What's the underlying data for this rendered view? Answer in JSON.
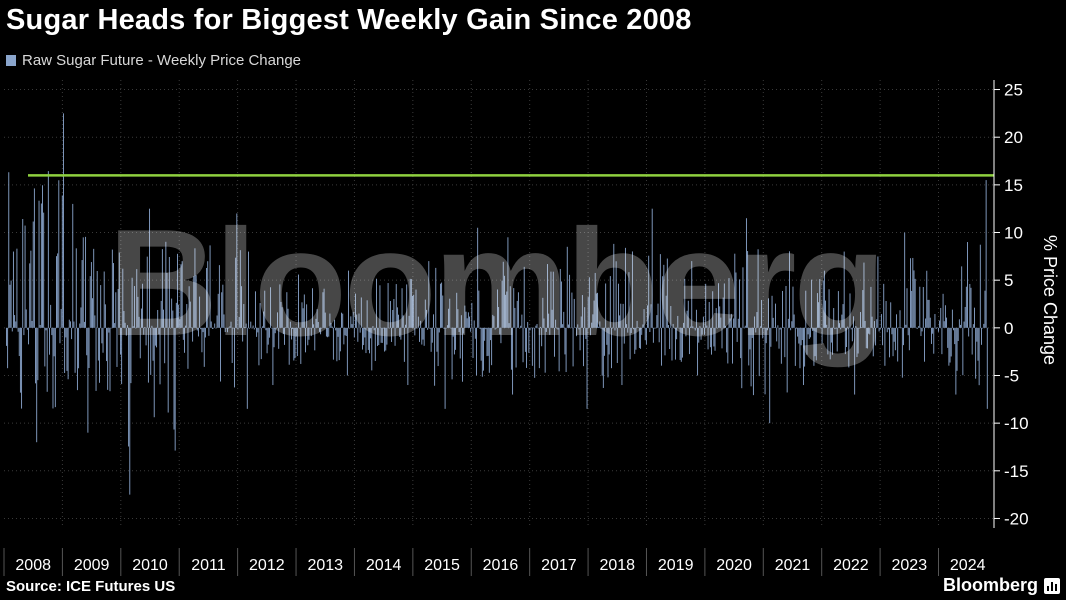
{
  "title": "Sugar Heads for Biggest Weekly Gain Since 2008",
  "legend": {
    "label": "Raw Sugar Future - Weekly Price Change",
    "color": "#8aa5cc"
  },
  "source": "Source: ICE Futures US",
  "brand": "Bloomberg",
  "watermark": "Bloomberg",
  "colors": {
    "background": "#000000",
    "bars": "#8aa5cc",
    "reference_line": "#8fd13f",
    "grid": "#3a3a3a"
  },
  "chart_data": {
    "type": "bar",
    "title": "Sugar Heads for Biggest Weekly Gain Since 2008",
    "ylabel": "% Price Change",
    "xlabel": "",
    "ylim": [
      -21,
      26
    ],
    "y_ticks": [
      25,
      20,
      15,
      10,
      5,
      0,
      -5,
      -10,
      -15,
      -20
    ],
    "x_tick_labels": [
      "2008",
      "2009",
      "2010",
      "2011",
      "2012",
      "2013",
      "2014",
      "2015",
      "2016",
      "2017",
      "2018",
      "2019",
      "2020",
      "2021",
      "2022",
      "2023",
      "2024"
    ],
    "grid": true,
    "y_axis_position": "right",
    "legend_position": "top-left",
    "reference_line": {
      "value": 16,
      "color": "#8fd13f"
    },
    "series": [
      {
        "name": "Raw Sugar Future - Weekly Price Change",
        "color": "#8aa5cc",
        "frequency": "weekly",
        "start": "2008-01",
        "annual_range_summary": [
          {
            "year": "2008",
            "max": 22.5,
            "min": -12
          },
          {
            "year": "2009",
            "max": 13,
            "min": -11
          },
          {
            "year": "2010",
            "max": 12.5,
            "min": -17.5
          },
          {
            "year": "2011",
            "max": 12,
            "min": -8.5
          },
          {
            "year": "2012",
            "max": 8,
            "min": -6
          },
          {
            "year": "2013",
            "max": 6,
            "min": -5
          },
          {
            "year": "2014",
            "max": 7,
            "min": -6
          },
          {
            "year": "2015",
            "max": 10.5,
            "min": -8.5
          },
          {
            "year": "2016",
            "max": 9.5,
            "min": -7
          },
          {
            "year": "2017",
            "max": 8.5,
            "min": -8.5
          },
          {
            "year": "2018",
            "max": 12.5,
            "min": -6
          },
          {
            "year": "2019",
            "max": 7,
            "min": -5
          },
          {
            "year": "2020",
            "max": 11.5,
            "min": -10
          },
          {
            "year": "2021",
            "max": 8,
            "min": -6
          },
          {
            "year": "2022",
            "max": 10,
            "min": -7
          },
          {
            "year": "2023",
            "max": 9,
            "min": -7
          },
          {
            "year": "2024",
            "max": 15.5,
            "min": -8.5
          }
        ]
      }
    ]
  }
}
